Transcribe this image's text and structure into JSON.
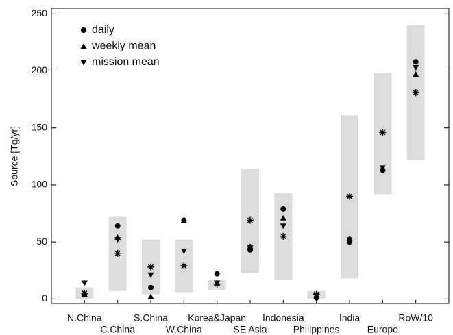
{
  "chart_data": {
    "type": "range-marker",
    "y_label": "Source [Tg/yr]",
    "categories": [
      "N.China",
      "C.China",
      "S.China",
      "W.China",
      "Korea&Japan",
      "SE Asia",
      "Indonesia",
      "Philippines",
      "India",
      "Europe",
      "RoW/10"
    ],
    "ranges": {
      "color": "#dcdcdc",
      "low": [
        0,
        7,
        4,
        6,
        8,
        23,
        17,
        0,
        18,
        92,
        122
      ],
      "high": [
        10,
        72,
        52,
        52,
        17,
        114,
        93,
        7,
        161,
        198,
        240
      ]
    },
    "series": [
      {
        "name": "daily",
        "marker": "circle",
        "color": "#000000",
        "values": [
          4,
          64,
          10,
          69,
          22,
          43,
          79,
          1,
          50,
          113,
          208
        ]
      },
      {
        "name": "weekly mean",
        "marker": "triangle-up",
        "color": "#000000",
        "values": [
          4,
          54,
          2,
          69,
          14,
          46,
          71,
          2,
          53,
          114,
          197
        ]
      },
      {
        "name": "mission mean",
        "marker": "triangle-down",
        "color": "#000000",
        "values": [
          14,
          52,
          21,
          42,
          14,
          45,
          64,
          3,
          52,
          115,
          203
        ]
      },
      {
        "marker": "asterisk",
        "color": "#000000",
        "values": [
          5,
          40,
          28,
          29,
          13,
          69,
          55,
          4,
          90,
          146,
          181
        ]
      }
    ],
    "ylim": [
      -4,
      255
    ],
    "yticks": [
      0,
      50,
      100,
      150,
      200,
      250
    ]
  }
}
